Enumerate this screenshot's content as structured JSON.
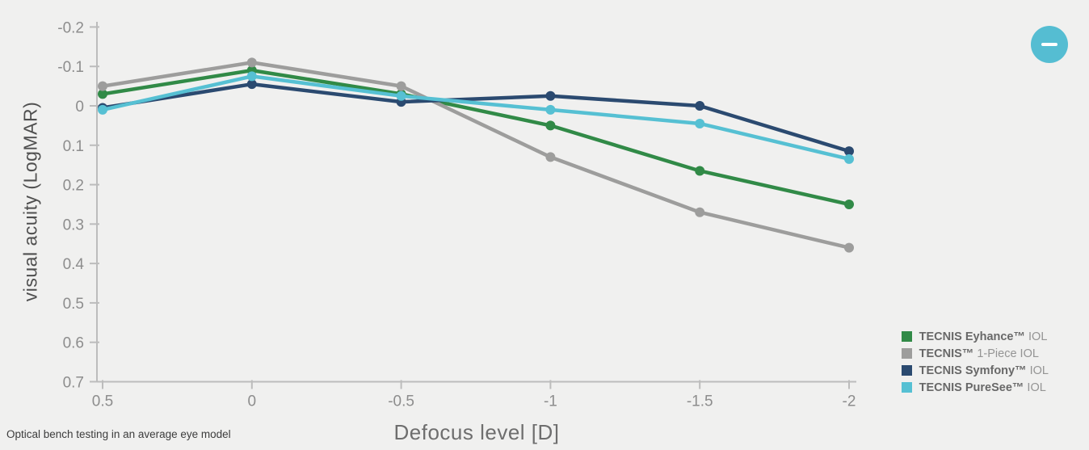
{
  "page": {
    "background": "#f0f0ef",
    "footnote": "Optical bench testing in an average eye model",
    "collapse_button": {
      "icon": "minus-icon",
      "color": "#55bdd2"
    }
  },
  "chart_data": {
    "type": "line",
    "title": "",
    "xlabel": "Defocus level [D]",
    "ylabel": "visual acuity (LogMAR)",
    "x_categories": [
      "0.5",
      "0",
      "-0.5",
      "-1",
      "-1.5",
      "-2"
    ],
    "y_ticks": [
      "-0.2",
      "-0.1",
      "0",
      "0.1",
      "0.2",
      "0.3",
      "0.4",
      "0.5",
      "0.6",
      "0.7"
    ],
    "y_tick_values": [
      -0.2,
      -0.1,
      0,
      0.1,
      0.2,
      0.3,
      0.4,
      0.5,
      0.6,
      0.7
    ],
    "ylim": [
      -0.2,
      0.7
    ],
    "y_axis_inverted": true,
    "grid": false,
    "legend_position": "bottom-right",
    "axis_color": "#bcbcbc",
    "series": [
      {
        "name": "TECNIS Eyhance™ IOL",
        "name_bold": "TECNIS Eyhance™",
        "name_rest": " IOL",
        "color": "#318a47",
        "values": [
          -0.03,
          -0.09,
          -0.03,
          0.05,
          0.165,
          0.25
        ]
      },
      {
        "name": "TECNIS™ 1-Piece IOL",
        "name_bold": "TECNIS™",
        "name_rest": " 1-Piece IOL",
        "color": "#9d9d9c",
        "values": [
          -0.05,
          -0.11,
          -0.05,
          0.13,
          0.27,
          0.36
        ]
      },
      {
        "name": "TECNIS Symfony™ IOL",
        "name_bold": "TECNIS Symfony™",
        "name_rest": " IOL",
        "color": "#2b4a70",
        "values": [
          0.005,
          -0.055,
          -0.01,
          -0.025,
          0.0,
          0.115
        ]
      },
      {
        "name": "TECNIS PureSee™ IOL",
        "name_bold": "TECNIS PureSee™",
        "name_rest": " IOL",
        "color": "#56c0d3",
        "values": [
          0.01,
          -0.075,
          -0.025,
          0.01,
          0.045,
          0.135
        ]
      }
    ]
  }
}
